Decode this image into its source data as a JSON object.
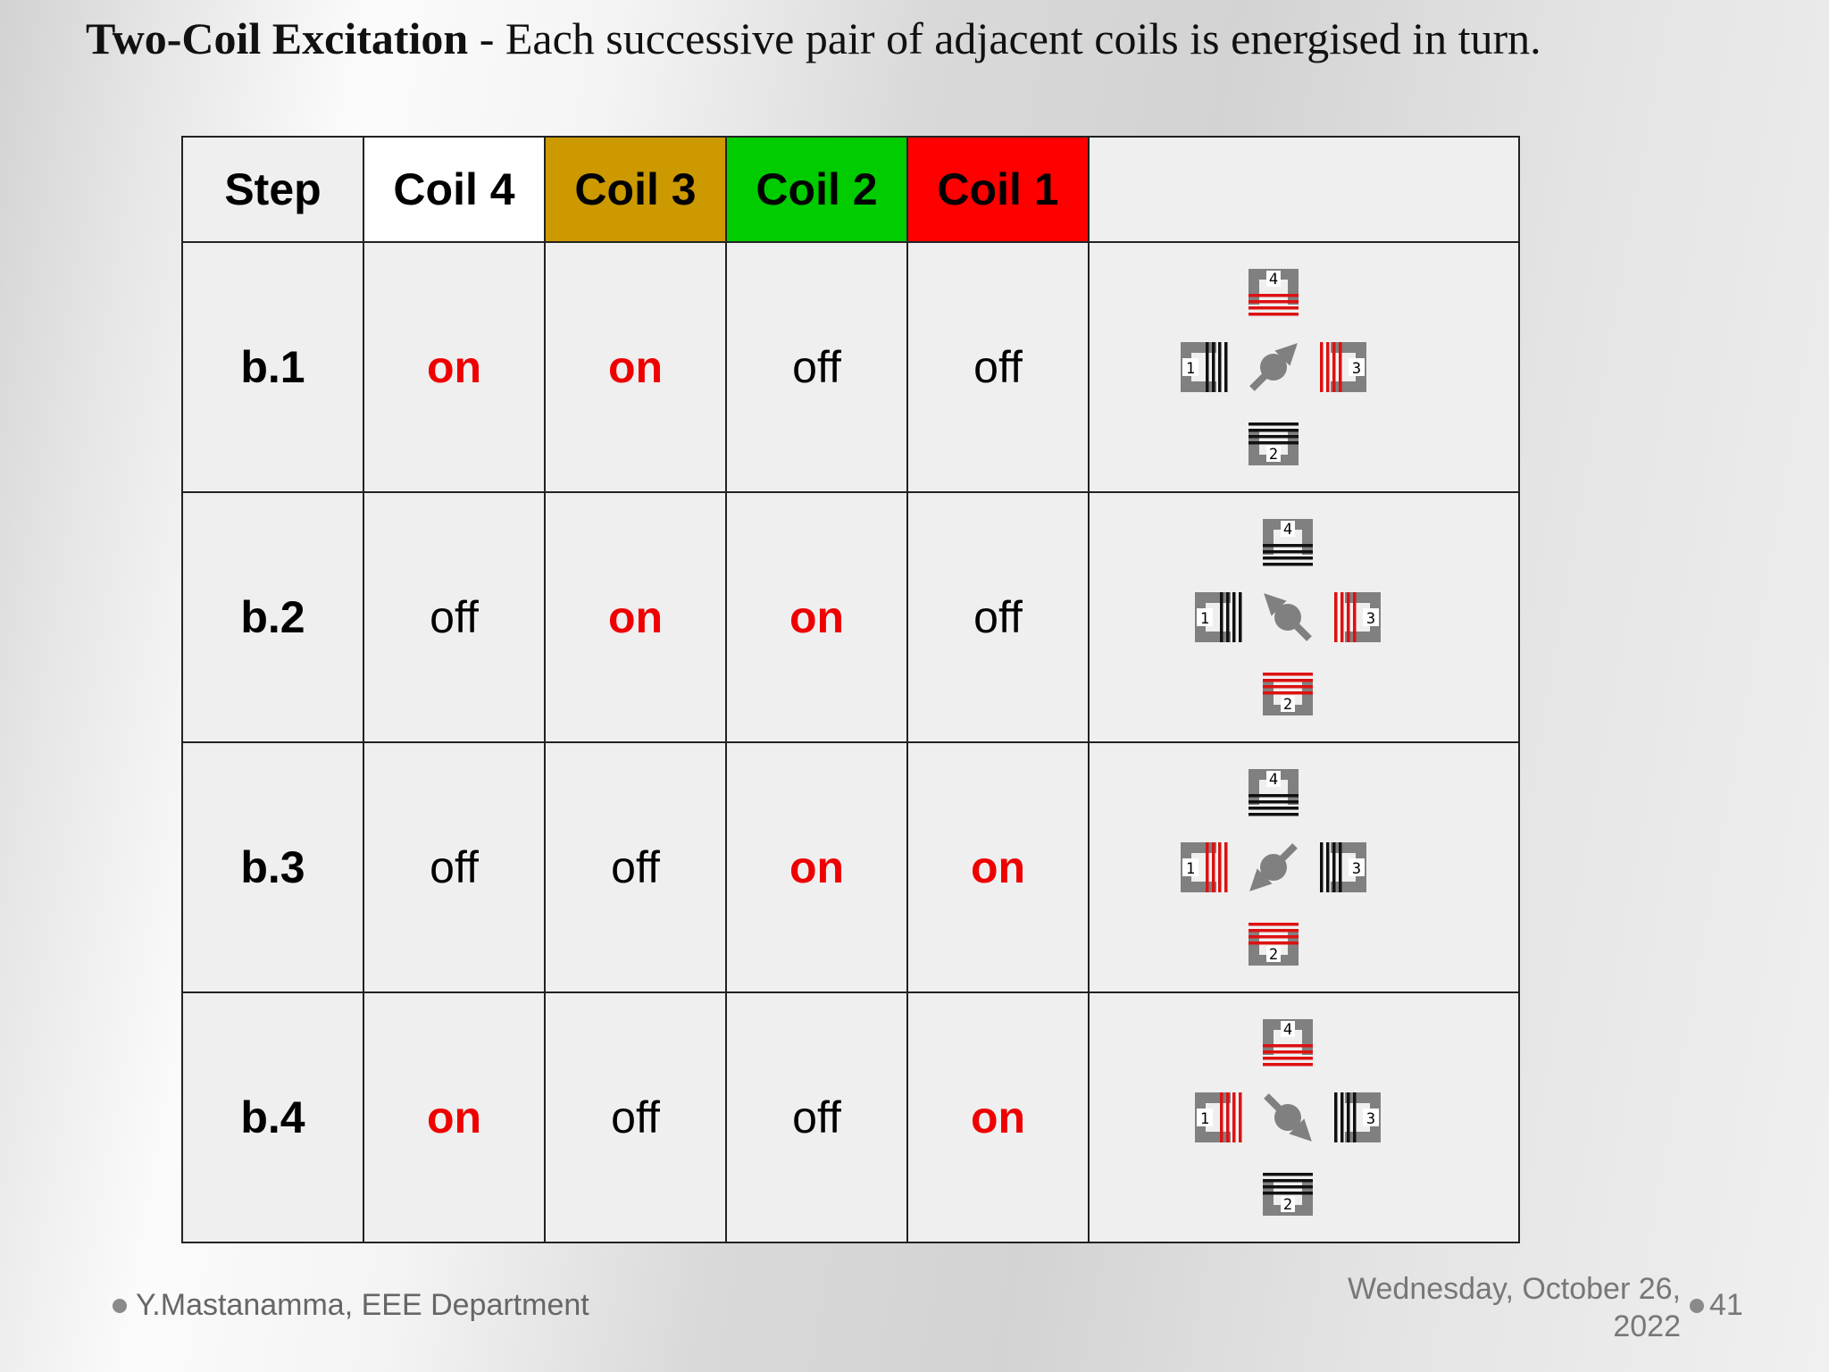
{
  "title": {
    "bold": "Two-Coil Excitation",
    "rest": " - Each successive pair of adjacent coils is energised in turn."
  },
  "table": {
    "headers": [
      "Step",
      "Coil 4",
      "Coil 3",
      "Coil 2",
      "Coil 1",
      ""
    ],
    "header_colors": [
      "#efefef",
      "#ffffff",
      "#cc9900",
      "#00cc00",
      "#ff0000",
      "#efefef"
    ],
    "rows": [
      {
        "step": "b.1",
        "coil4": "on",
        "coil3": "on",
        "coil2": "off",
        "coil1": "off"
      },
      {
        "step": "b.2",
        "coil4": "off",
        "coil3": "on",
        "coil2": "on",
        "coil1": "off"
      },
      {
        "step": "b.3",
        "coil4": "off",
        "coil3": "off",
        "coil2": "on",
        "coil1": "on"
      },
      {
        "step": "b.4",
        "coil4": "on",
        "coil3": "off",
        "coil2": "off",
        "coil1": "on"
      }
    ]
  },
  "diagram": {
    "coil_labels": [
      "1",
      "2",
      "3",
      "4"
    ],
    "active_color": "#dd1111",
    "inactive_color": "#111111",
    "frame_color": "#808080",
    "rotor_directions": [
      "north-east",
      "north-west",
      "south-west",
      "south-east"
    ]
  },
  "footer": {
    "author": "Y.Mastanamma, EEE Department",
    "date_line1": "Wednesday, October 26,",
    "date_line2": "2022",
    "page": "41"
  }
}
